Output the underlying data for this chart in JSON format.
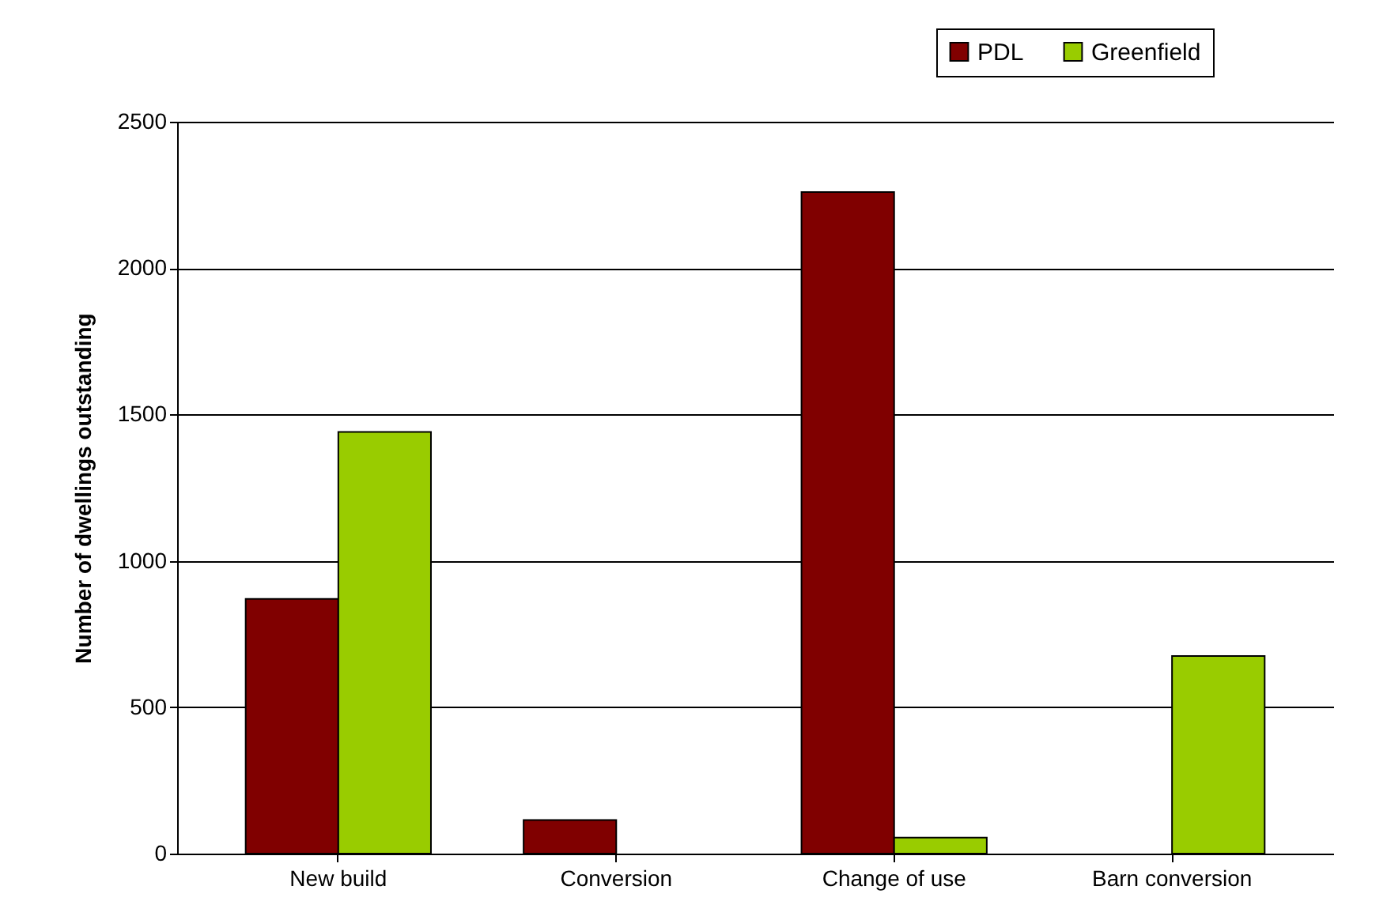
{
  "chart_data": {
    "type": "bar",
    "ylabel": "Number of dwellings outstanding",
    "categories": [
      "New build",
      "Conversion",
      "Change of use",
      "Barn conversion"
    ],
    "series": [
      {
        "name": "PDL",
        "color": "#800000",
        "values": [
          870,
          115,
          2260,
          0
        ]
      },
      {
        "name": "Greenfield",
        "color": "#99cc00",
        "values": [
          1440,
          0,
          55,
          675
        ]
      }
    ],
    "ylim": [
      0,
      2500
    ],
    "yticks": [
      0,
      500,
      1000,
      1500,
      2000,
      2500
    ],
    "grid": "y",
    "legend": "top right"
  }
}
